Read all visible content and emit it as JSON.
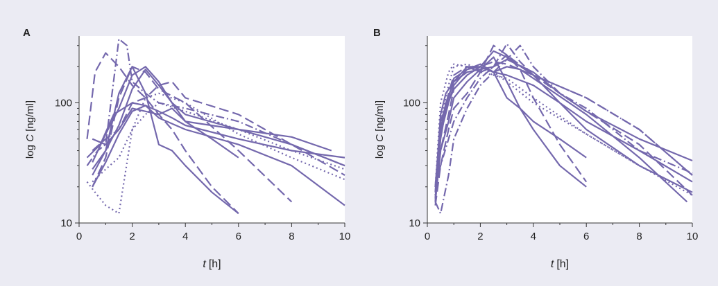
{
  "colors": {
    "background": "#ebebf3",
    "plot_bg": "#ffffff",
    "series": "#7468ad",
    "axis": "#333333"
  },
  "chart_data": [
    {
      "panel": "A",
      "type": "line",
      "xlabel_italic": "t",
      "xlabel_unit": "[h]",
      "ylabel_prefix": "log ",
      "ylabel_italic": "C",
      "ylabel_unit": " [ng/ml]",
      "xlim": [
        0,
        10
      ],
      "ylim": [
        10,
        360
      ],
      "y_scale": "log",
      "x_ticks": [
        "0",
        "2",
        "4",
        "6",
        "8",
        "10"
      ],
      "y_ticks": [
        "10",
        "100"
      ],
      "grid": false,
      "series": [
        {
          "dash": "solid",
          "x": [
            0.3,
            0.8,
            1.3,
            2.0,
            2.5,
            3.0,
            3.5,
            4.0,
            6.0,
            8.0,
            10.0
          ],
          "y": [
            35,
            45,
            80,
            100,
            95,
            85,
            75,
            65,
            50,
            40,
            35
          ]
        },
        {
          "dash": "solid",
          "x": [
            0.5,
            1.0,
            1.5,
            2.0,
            2.5,
            3.0,
            3.5,
            4.0,
            6.0,
            8.0,
            10.0
          ],
          "y": [
            28,
            40,
            65,
            130,
            190,
            140,
            100,
            80,
            60,
            45,
            30
          ]
        },
        {
          "dash": "solid",
          "x": [
            0.5,
            1.0,
            1.5,
            2.0,
            2.5,
            3.0,
            4.0,
            6.0,
            8.0,
            10.0
          ],
          "y": [
            20,
            32,
            55,
            85,
            95,
            75,
            60,
            45,
            30,
            14
          ]
        },
        {
          "dash": "solid",
          "x": [
            0.5,
            1.0,
            1.5,
            2.0,
            2.5,
            3.0,
            3.5,
            4.0,
            5.0,
            6.0
          ],
          "y": [
            25,
            40,
            120,
            200,
            120,
            45,
            40,
            30,
            18,
            12
          ]
        },
        {
          "dash": "solid",
          "x": [
            0.5,
            1.0,
            1.5,
            2.0,
            2.5,
            3.0,
            3.5,
            4.0,
            6.0,
            8.0,
            9.5
          ],
          "y": [
            50,
            45,
            60,
            90,
            85,
            80,
            90,
            70,
            60,
            52,
            40
          ]
        },
        {
          "dash": "solid",
          "x": [
            0.5,
            1.0,
            1.5,
            2.0,
            2.5,
            3.0,
            3.5,
            4.0,
            5.0,
            6.0
          ],
          "y": [
            32,
            55,
            90,
            170,
            200,
            150,
            100,
            70,
            50,
            35
          ]
        },
        {
          "dash": "dash",
          "x": [
            0.3,
            0.6,
            1.0,
            1.5,
            2.0,
            2.5,
            3.0,
            3.5,
            4.0,
            5.0,
            6.0
          ],
          "y": [
            50,
            180,
            260,
            200,
            140,
            110,
            80,
            60,
            40,
            20,
            12
          ]
        },
        {
          "dash": "dash",
          "x": [
            0.5,
            1.0,
            1.5,
            2.0,
            2.5,
            3.0,
            4.0,
            6.0,
            8.0
          ],
          "y": [
            20,
            35,
            110,
            200,
            180,
            130,
            100,
            40,
            15
          ]
        },
        {
          "dash": "dash",
          "x": [
            0.5,
            1.0,
            1.5,
            2.0,
            2.5,
            3.0,
            3.5,
            4.0,
            6.0,
            8.0,
            10.0
          ],
          "y": [
            40,
            50,
            60,
            100,
            110,
            140,
            150,
            110,
            80,
            45,
            25
          ]
        },
        {
          "dash": "dashdot",
          "x": [
            0.3,
            0.7,
            1.0,
            1.5,
            1.8,
            2.0,
            2.5,
            3.0,
            4.0,
            6.0,
            8.0,
            10.0
          ],
          "y": [
            30,
            40,
            45,
            340,
            300,
            150,
            120,
            100,
            90,
            70,
            45,
            30
          ]
        },
        {
          "dash": "dot",
          "x": [
            0.3,
            0.6,
            1.0,
            1.5,
            2.0,
            2.5,
            3.0,
            4.0,
            6.0,
            8.0,
            10.0
          ],
          "y": [
            22,
            18,
            14,
            12,
            60,
            110,
            120,
            100,
            55,
            35,
            23
          ]
        },
        {
          "dash": "dot",
          "x": [
            0.5,
            1.0,
            1.5,
            2.0,
            2.5,
            3.0,
            4.0,
            6.0,
            8.0,
            10.0
          ],
          "y": [
            22,
            28,
            35,
            60,
            80,
            100,
            85,
            60,
            40,
            28
          ]
        }
      ]
    },
    {
      "panel": "B",
      "type": "line",
      "xlabel_italic": "t",
      "xlabel_unit": "[h]",
      "ylabel_prefix": "log ",
      "ylabel_italic": "C",
      "ylabel_unit": " [ng/ml]",
      "xlim": [
        0,
        10
      ],
      "ylim": [
        10,
        360
      ],
      "y_scale": "log",
      "x_ticks": [
        "0",
        "2",
        "4",
        "6",
        "8",
        "10"
      ],
      "y_ticks": [
        "10",
        "100"
      ],
      "grid": false,
      "series": [
        {
          "dash": "solid",
          "x": [
            0.3,
            0.5,
            0.7,
            1.0,
            1.5,
            2.0,
            2.5,
            3.0,
            3.5,
            4.0,
            5.0,
            6.0
          ],
          "y": [
            20,
            60,
            100,
            150,
            200,
            200,
            180,
            110,
            90,
            70,
            50,
            35
          ]
        },
        {
          "dash": "solid",
          "x": [
            0.3,
            0.5,
            0.7,
            1.0,
            1.5,
            2.0,
            2.5,
            3.0,
            4.0,
            5.0,
            6.0,
            8.0,
            10.0
          ],
          "y": [
            18,
            80,
            120,
            150,
            180,
            190,
            200,
            230,
            180,
            120,
            85,
            50,
            33
          ]
        },
        {
          "dash": "solid",
          "x": [
            0.3,
            0.5,
            0.7,
            1.0,
            1.5,
            2.0,
            2.5,
            3.0,
            4.0,
            5.0,
            6.0,
            8.0,
            10.0
          ],
          "y": [
            15,
            50,
            90,
            130,
            170,
            200,
            270,
            240,
            170,
            100,
            60,
            30,
            18
          ]
        },
        {
          "dash": "solid",
          "x": [
            0.3,
            0.5,
            0.8,
            1.0,
            1.5,
            2.0,
            2.5,
            3.0,
            4.0,
            5.0,
            6.0,
            8.0,
            10.0
          ],
          "y": [
            20,
            70,
            110,
            160,
            190,
            210,
            180,
            170,
            140,
            100,
            70,
            40,
            22
          ]
        },
        {
          "dash": "solid",
          "x": [
            0.3,
            0.5,
            0.8,
            1.0,
            1.5,
            2.0,
            2.5,
            3.0,
            3.5,
            4.0,
            5.0,
            6.0
          ],
          "y": [
            16,
            40,
            70,
            110,
            150,
            190,
            240,
            150,
            90,
            60,
            30,
            20
          ]
        },
        {
          "dash": "solid",
          "x": [
            0.3,
            0.5,
            0.8,
            1.0,
            1.5,
            2.0,
            2.5,
            3.0,
            3.5,
            4.0,
            6.0,
            8.0,
            9.8
          ],
          "y": [
            18,
            55,
            100,
            140,
            190,
            200,
            180,
            200,
            190,
            160,
            80,
            35,
            15
          ]
        },
        {
          "dash": "dash",
          "x": [
            0.3,
            0.5,
            0.8,
            1.0,
            1.5,
            2.0,
            2.5,
            3.0,
            4.0,
            5.0,
            6.0,
            8.0,
            10.0
          ],
          "y": [
            14,
            30,
            60,
            90,
            120,
            180,
            300,
            250,
            170,
            120,
            85,
            45,
            17
          ]
        },
        {
          "dash": "dash",
          "x": [
            0.3,
            0.5,
            0.8,
            1.0,
            1.5,
            2.0,
            2.5,
            3.0,
            3.5,
            4.0,
            5.0,
            6.0
          ],
          "y": [
            16,
            60,
            120,
            170,
            200,
            180,
            200,
            250,
            190,
            110,
            45,
            22
          ]
        },
        {
          "dash": "dash",
          "x": [
            0.3,
            0.5,
            0.8,
            1.0,
            1.5,
            2.0,
            2.5,
            3.0,
            4.0,
            6.0,
            8.0,
            10.0
          ],
          "y": [
            15,
            40,
            80,
            130,
            170,
            200,
            220,
            210,
            170,
            110,
            60,
            25
          ]
        },
        {
          "dash": "dashdot",
          "x": [
            0.3,
            0.5,
            0.8,
            1.0,
            1.5,
            2.0,
            2.5,
            3.0,
            3.5,
            4.0,
            6.0,
            8.0,
            10.0
          ],
          "y": [
            20,
            30,
            50,
            70,
            110,
            160,
            200,
            310,
            220,
            170,
            110,
            60,
            25
          ]
        },
        {
          "dash": "dashdot",
          "x": [
            0.3,
            0.5,
            0.8,
            1.0,
            1.5,
            2.0,
            2.5,
            3.0,
            3.5,
            4.0,
            5.0,
            6.0,
            8.0,
            10.0
          ],
          "y": [
            15,
            12,
            25,
            50,
            90,
            140,
            180,
            230,
            300,
            200,
            120,
            90,
            40,
            26
          ]
        },
        {
          "dash": "dot",
          "x": [
            0.3,
            0.5,
            0.8,
            1.0,
            1.5,
            2.0,
            2.5,
            3.0,
            4.0,
            6.0,
            8.0,
            10.0
          ],
          "y": [
            20,
            100,
            180,
            210,
            200,
            180,
            170,
            160,
            110,
            55,
            30,
            18
          ]
        },
        {
          "dash": "dot",
          "x": [
            0.3,
            0.5,
            0.8,
            1.0,
            1.5,
            2.0,
            2.5,
            3.0,
            4.0,
            6.0,
            8.0,
            10.0
          ],
          "y": [
            17,
            70,
            140,
            200,
            210,
            190,
            180,
            150,
            100,
            55,
            30,
            17
          ]
        }
      ]
    }
  ]
}
